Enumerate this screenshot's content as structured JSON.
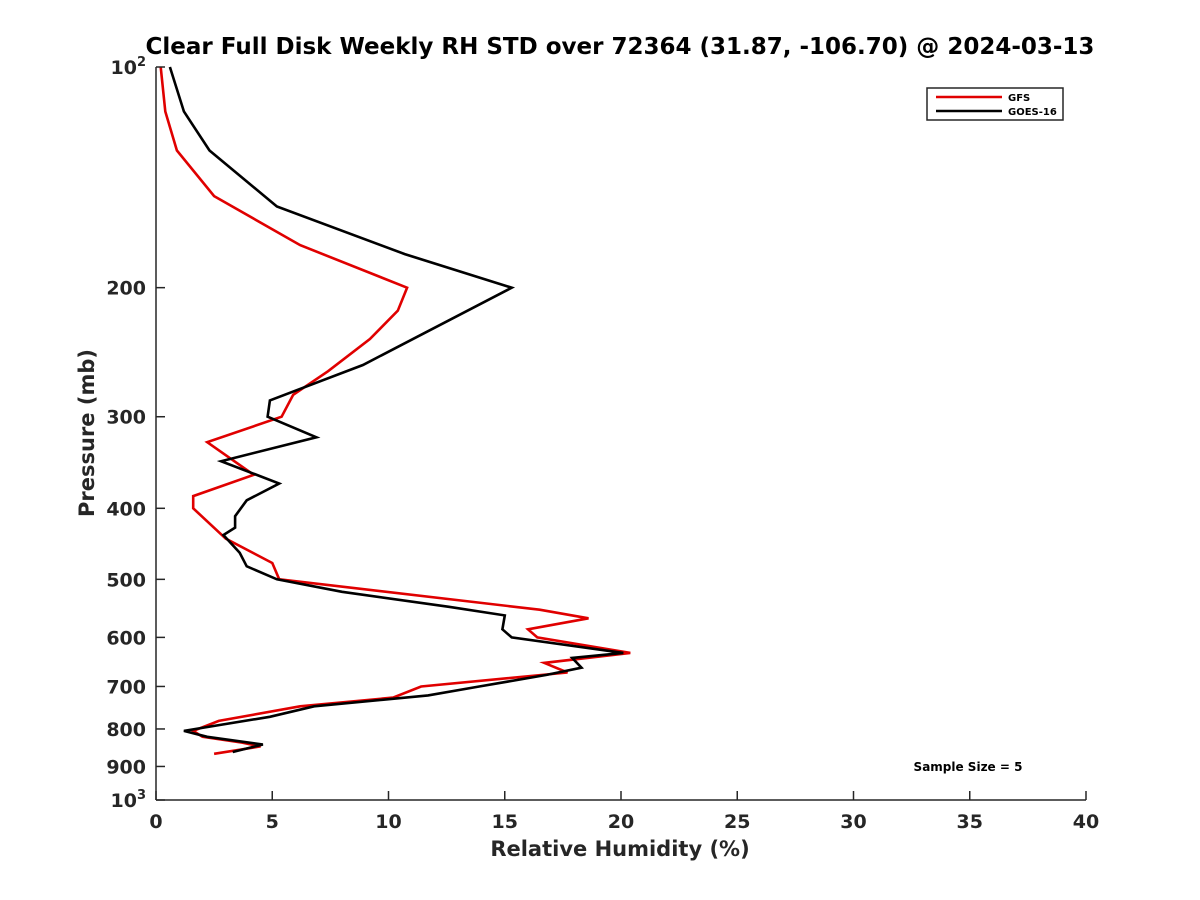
{
  "chart_data": {
    "type": "line",
    "title": "Clear Full Disk Weekly RH STD over 72364 (31.87, -106.70) @ 2024-03-13",
    "xlabel": "Relative Humidity (%)",
    "ylabel": "Pressure (mb)",
    "xlim": [
      0,
      40
    ],
    "ylim": [
      100,
      1000
    ],
    "y_scale": "log",
    "y_reversed": true,
    "grid": false,
    "legend_position": "top-right",
    "x_ticks": [
      0,
      5,
      10,
      15,
      20,
      25,
      30,
      35,
      40
    ],
    "x_tick_labels": [
      "0",
      "5",
      "10",
      "15",
      "20",
      "25",
      "30",
      "35",
      "40"
    ],
    "y_ticks": [
      {
        "value": 100,
        "base": "10",
        "exp": "2"
      },
      {
        "value": 200,
        "label": "200"
      },
      {
        "value": 300,
        "label": "300"
      },
      {
        "value": 400,
        "label": "400"
      },
      {
        "value": 500,
        "label": "500"
      },
      {
        "value": 600,
        "label": "600"
      },
      {
        "value": 700,
        "label": "700"
      },
      {
        "value": 800,
        "label": "800"
      },
      {
        "value": 900,
        "label": "900"
      },
      {
        "value": 1000,
        "base": "10",
        "exp": "3"
      }
    ],
    "series": [
      {
        "name": "GFS",
        "color": "#e00000",
        "points": [
          [
            0.2,
            100
          ],
          [
            0.4,
            115
          ],
          [
            0.9,
            130
          ],
          [
            2.5,
            150
          ],
          [
            6.2,
            175
          ],
          [
            10.8,
            200
          ],
          [
            10.4,
            215
          ],
          [
            9.2,
            235
          ],
          [
            7.4,
            260
          ],
          [
            5.9,
            280
          ],
          [
            5.4,
            300
          ],
          [
            2.2,
            325
          ],
          [
            4.2,
            360
          ],
          [
            1.6,
            385
          ],
          [
            1.6,
            400
          ],
          [
            3.0,
            440
          ],
          [
            5.0,
            475
          ],
          [
            5.3,
            500
          ],
          [
            16.5,
            550
          ],
          [
            18.6,
            565
          ],
          [
            16.0,
            585
          ],
          [
            16.4,
            600
          ],
          [
            20.4,
            630
          ],
          [
            16.7,
            650
          ],
          [
            17.7,
            670
          ],
          [
            11.4,
            700
          ],
          [
            10.2,
            725
          ],
          [
            6.2,
            745
          ],
          [
            2.7,
            780
          ],
          [
            1.6,
            805
          ],
          [
            2.0,
            820
          ],
          [
            3.7,
            835
          ],
          [
            4.5,
            845
          ],
          [
            2.5,
            865
          ]
        ]
      },
      {
        "name": "GOES-16",
        "color": "#000000",
        "points": [
          [
            0.6,
            100
          ],
          [
            1.2,
            115
          ],
          [
            2.3,
            130
          ],
          [
            5.2,
            155
          ],
          [
            10.7,
            180
          ],
          [
            15.3,
            200
          ],
          [
            10.5,
            240
          ],
          [
            8.9,
            255
          ],
          [
            4.9,
            285
          ],
          [
            4.8,
            300
          ],
          [
            6.9,
            320
          ],
          [
            2.8,
            345
          ],
          [
            5.3,
            370
          ],
          [
            3.9,
            390
          ],
          [
            3.4,
            410
          ],
          [
            3.4,
            425
          ],
          [
            2.9,
            435
          ],
          [
            3.6,
            460
          ],
          [
            3.9,
            480
          ],
          [
            5.2,
            500
          ],
          [
            8.0,
            520
          ],
          [
            12.6,
            545
          ],
          [
            15.0,
            560
          ],
          [
            14.9,
            585
          ],
          [
            15.3,
            600
          ],
          [
            20.1,
            630
          ],
          [
            17.9,
            640
          ],
          [
            18.3,
            660
          ],
          [
            16.8,
            675
          ],
          [
            13.9,
            700
          ],
          [
            11.7,
            720
          ],
          [
            6.8,
            745
          ],
          [
            4.9,
            770
          ],
          [
            1.2,
            805
          ],
          [
            2.2,
            820
          ],
          [
            4.6,
            840
          ],
          [
            3.3,
            860
          ]
        ]
      }
    ],
    "annotation": "Sample Size = 5"
  }
}
